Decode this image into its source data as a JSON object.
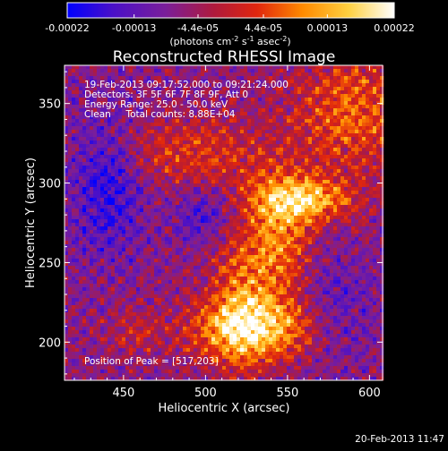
{
  "colorbar": {
    "ticks": [
      "-0.00022",
      "-0.00013",
      "-4.4e-05",
      "4.4e-05",
      "0.00013",
      "0.00022"
    ],
    "tick_values": [
      -0.00022,
      -0.00013,
      -4.4e-05,
      4.4e-05,
      0.00013,
      0.00022
    ],
    "range": [
      -0.00022,
      0.00022
    ],
    "units_text": "(photons cm",
    "units_sup1": "-2",
    "units_mid": " s",
    "units_sup2": "-1",
    "units_mid2": " asec",
    "units_sup3": "-2",
    "units_end": ")",
    "colors": [
      "#0000ff",
      "#4a10c8",
      "#7a1e9a",
      "#b01a3c",
      "#e0260e",
      "#ff8a00",
      "#ffd040",
      "#ffffff"
    ]
  },
  "chart_data": {
    "type": "heatmap",
    "title": "Reconstructed RHESSI Image",
    "xlabel": "Heliocentric X (arcsec)",
    "ylabel": "Heliocentric Y (arcsec)",
    "xlim": [
      414,
      608
    ],
    "ylim": [
      176,
      374
    ],
    "x_ticks": [
      450,
      500,
      550,
      600
    ],
    "y_ticks": [
      200,
      250,
      300,
      350
    ],
    "x_tick_labels": [
      "450",
      "500",
      "550",
      "600"
    ],
    "y_tick_labels": [
      "200",
      "250",
      "300",
      "350"
    ],
    "peak": [
      517,
      203
    ],
    "bright_features": [
      {
        "x": 530,
        "y": 208,
        "sx": 28,
        "sy": 14,
        "amp": 0.00022
      },
      {
        "x": 545,
        "y": 260,
        "sx": 14,
        "sy": 30,
        "amp": 0.00016
      },
      {
        "x": 560,
        "y": 290,
        "sx": 22,
        "sy": 10,
        "amp": 0.0002
      },
      {
        "x": 590,
        "y": 345,
        "sx": 25,
        "sy": 25,
        "amp": 0.00014
      },
      {
        "x": 490,
        "y": 320,
        "sx": 35,
        "sy": 15,
        "amp": 0.0001
      },
      {
        "x": 520,
        "y": 230,
        "sx": 12,
        "sy": 30,
        "amp": 0.00012
      },
      {
        "x": 455,
        "y": 205,
        "sx": 12,
        "sy": 10,
        "amp": 6e-05
      }
    ],
    "dim_features": [
      {
        "x": 440,
        "y": 300,
        "sx": 15,
        "sy": 30,
        "amp": -0.00012
      },
      {
        "x": 500,
        "y": 280,
        "sx": 12,
        "sy": 12,
        "amp": -8e-05
      },
      {
        "x": 575,
        "y": 220,
        "sx": 20,
        "sy": 25,
        "amp": -7e-05
      }
    ]
  },
  "info": {
    "time_range": "19-Feb-2013 09:17:52.000 to 09:21:24.000",
    "detectors": "Detectors: 3F 5F 6F 7F 8F 9F, Att 0",
    "energy": "Energy Range: 25.0 - 50.0 keV",
    "clean": "Clean     Total counts: 8.88E+04",
    "peak_text": "Position of Peak = [517,203]"
  },
  "timestamp": "20-Feb-2013 11:47"
}
